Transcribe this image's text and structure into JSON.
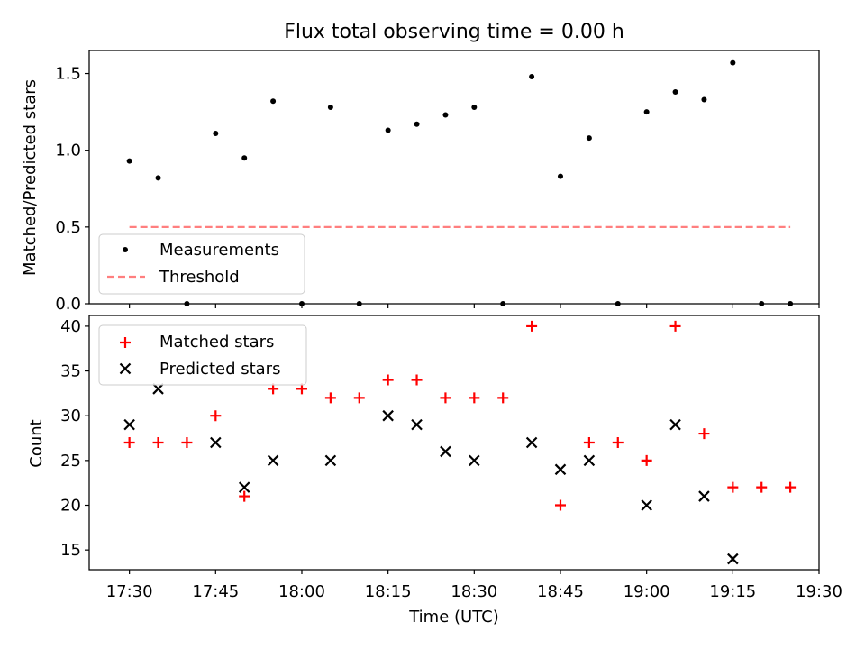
{
  "chart_data": [
    {
      "type": "scatter",
      "title": "Flux total observing time = 0.00 h",
      "xlabel": "",
      "ylabel": "Matched/Predicted stars",
      "ylim": [
        0,
        1.65
      ],
      "yticks": [
        0.0,
        0.5,
        1.0,
        1.5
      ],
      "ytick_labels": [
        "0.0",
        "0.5",
        "1.0",
        "1.5"
      ],
      "grid": false,
      "legend_position": "lower-left",
      "x": [
        "17:30",
        "17:35",
        "17:40",
        "17:45",
        "17:50",
        "17:55",
        "18:00",
        "18:05",
        "18:10",
        "18:15",
        "18:20",
        "18:25",
        "18:30",
        "18:35",
        "18:40",
        "18:45",
        "18:50",
        "18:55",
        "19:00",
        "19:05",
        "19:10",
        "19:15",
        "19:20",
        "19:25"
      ],
      "series": [
        {
          "name": "Measurements",
          "marker": "dot",
          "color": "#000000",
          "values": [
            0.93,
            0.82,
            0.0,
            1.11,
            0.95,
            1.32,
            0.0,
            1.28,
            0.0,
            1.13,
            1.17,
            1.23,
            1.28,
            0.0,
            1.48,
            0.83,
            1.08,
            0.0,
            1.25,
            1.38,
            1.33,
            1.57,
            0.0,
            0.0
          ]
        },
        {
          "name": "Threshold",
          "marker": "dashed-line",
          "color": "#ff7f7f",
          "x": [
            "17:30",
            "19:25"
          ],
          "values": [
            0.5,
            0.5
          ]
        }
      ]
    },
    {
      "type": "scatter",
      "title": "",
      "xlabel": "Time (UTC)",
      "ylabel": "Count",
      "ylim": [
        12.8,
        41.2
      ],
      "yticks": [
        15,
        20,
        25,
        30,
        35,
        40
      ],
      "ytick_labels": [
        "15",
        "20",
        "25",
        "30",
        "35",
        "40"
      ],
      "xlim": [
        "17:23",
        "19:30"
      ],
      "xtick_labels": [
        "17:30",
        "17:45",
        "18:00",
        "18:15",
        "18:30",
        "18:45",
        "19:00",
        "19:15",
        "19:30"
      ],
      "grid": false,
      "legend_position": "upper-left",
      "series": [
        {
          "name": "Matched stars",
          "marker": "plus",
          "color": "#ff0000",
          "x": [
            "17:30",
            "17:35",
            "17:40",
            "17:45",
            "17:50",
            "17:55",
            "18:00",
            "18:05",
            "18:10",
            "18:15",
            "18:20",
            "18:25",
            "18:30",
            "18:35",
            "18:40",
            "18:45",
            "18:50",
            "18:55",
            "19:00",
            "19:05",
            "19:10",
            "19:15",
            "19:20",
            "19:25"
          ],
          "values": [
            27,
            27,
            27,
            30,
            21,
            33,
            33,
            32,
            32,
            34,
            34,
            32,
            32,
            32,
            40,
            20,
            27,
            27,
            25,
            40,
            28,
            22,
            22,
            22
          ]
        },
        {
          "name": "Predicted stars",
          "marker": "x",
          "color": "#000000",
          "x": [
            "17:30",
            "17:35",
            "17:45",
            "17:50",
            "17:55",
            "18:05",
            "18:15",
            "18:20",
            "18:25",
            "18:30",
            "18:40",
            "18:45",
            "18:50",
            "19:00",
            "19:05",
            "19:10",
            "19:15"
          ],
          "values": [
            29,
            33,
            27,
            22,
            25,
            25,
            30,
            29,
            26,
            25,
            27,
            24,
            25,
            20,
            29,
            21,
            14
          ]
        }
      ]
    }
  ]
}
